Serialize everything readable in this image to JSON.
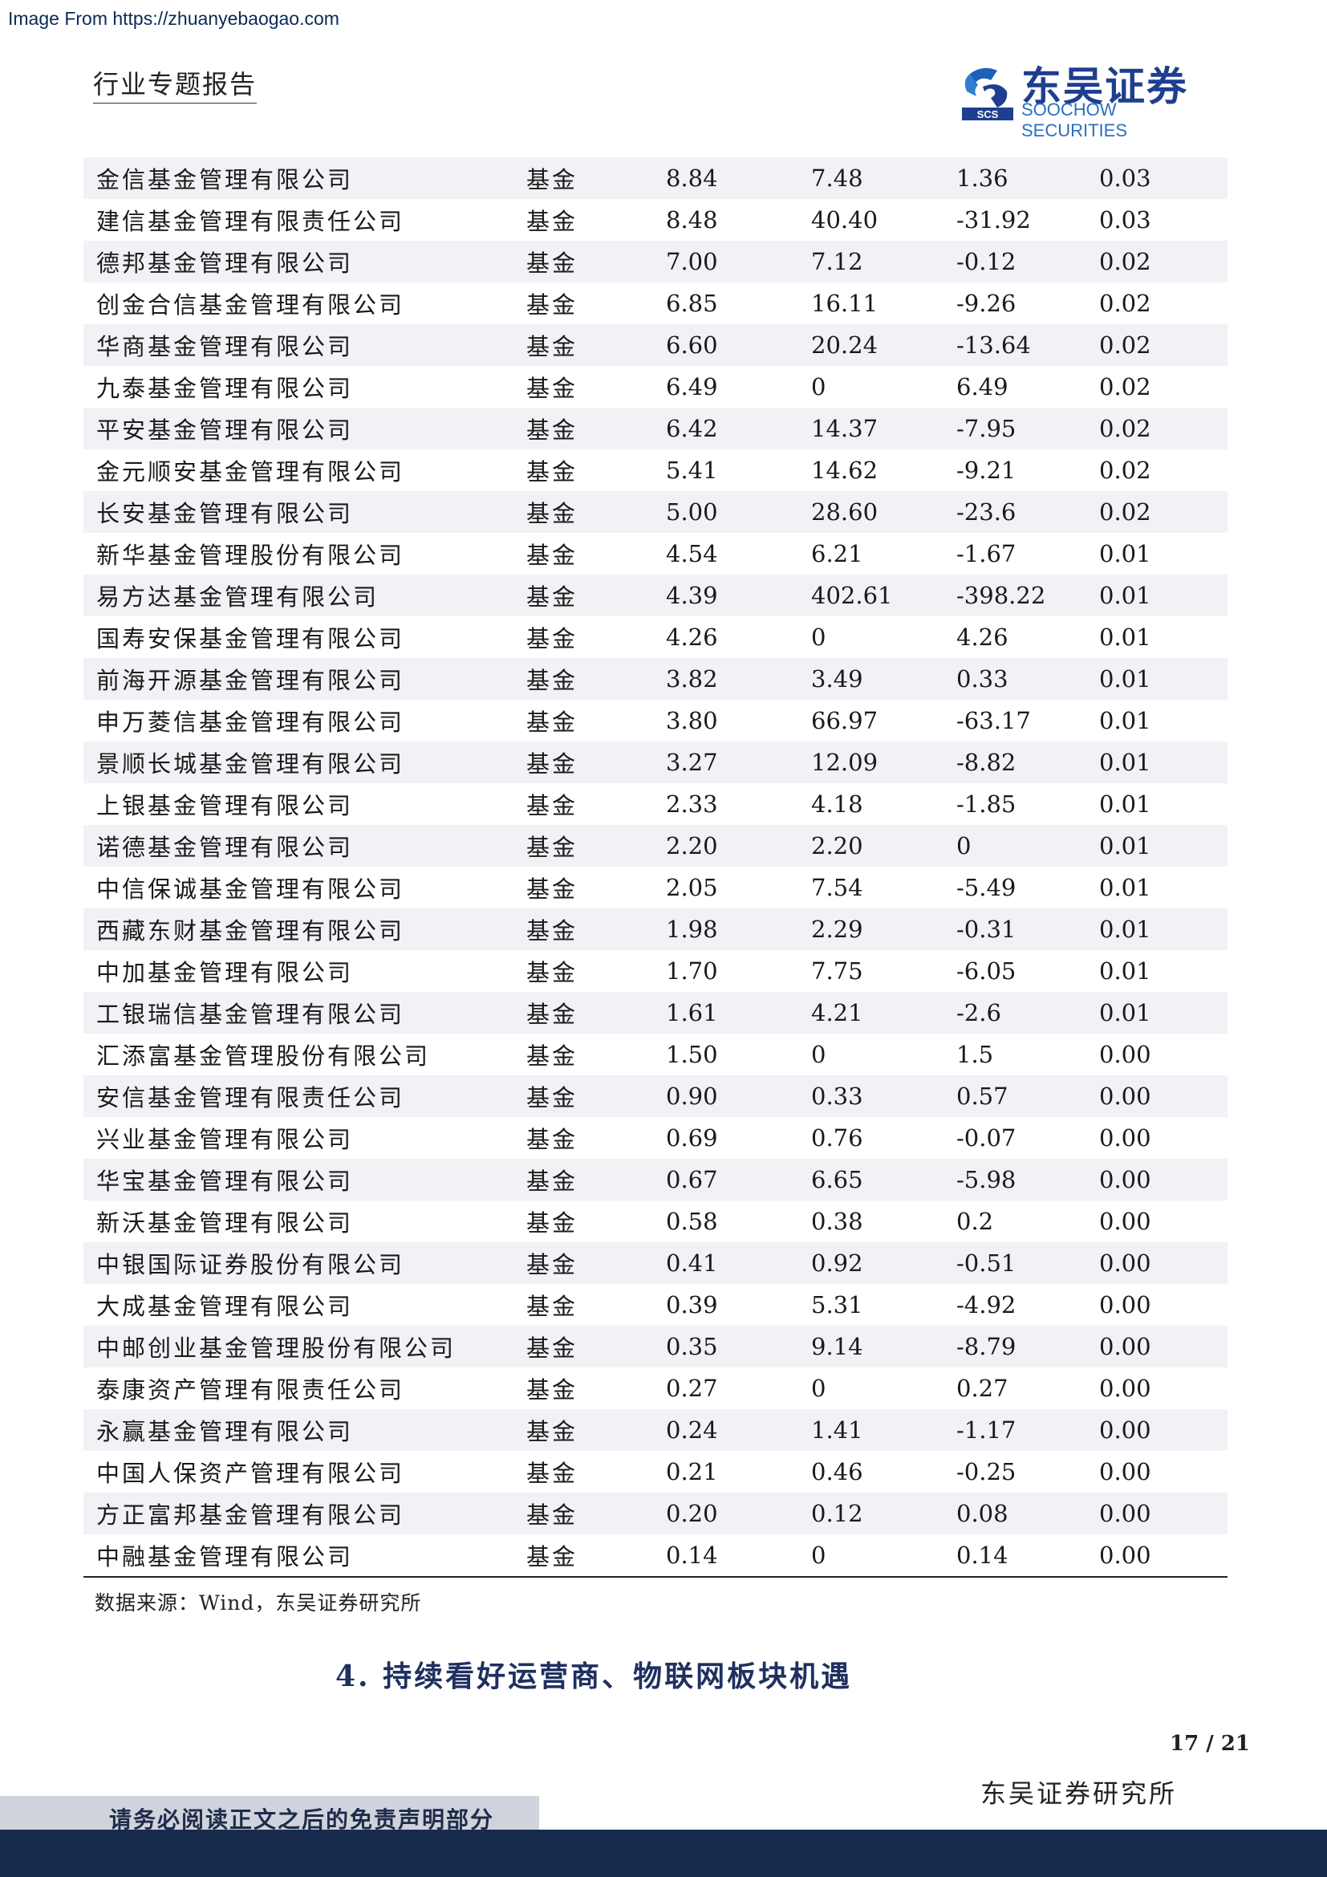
{
  "source_watermark": "Image From https://zhuanyebaogao.com",
  "header": {
    "report_type": "行业专题报告",
    "brand_cn": "东吴证券",
    "brand_en": "SOOCHOW SECURITIES",
    "logo_small": "SCS"
  },
  "table": {
    "rows": [
      [
        "金信基金管理有限公司",
        "基金",
        "8.84",
        "7.48",
        "1.36",
        "0.03"
      ],
      [
        "建信基金管理有限责任公司",
        "基金",
        "8.48",
        "40.40",
        "-31.92",
        "0.03"
      ],
      [
        "德邦基金管理有限公司",
        "基金",
        "7.00",
        "7.12",
        "-0.12",
        "0.02"
      ],
      [
        "创金合信基金管理有限公司",
        "基金",
        "6.85",
        "16.11",
        "-9.26",
        "0.02"
      ],
      [
        "华商基金管理有限公司",
        "基金",
        "6.60",
        "20.24",
        "-13.64",
        "0.02"
      ],
      [
        "九泰基金管理有限公司",
        "基金",
        "6.49",
        "0",
        "6.49",
        "0.02"
      ],
      [
        "平安基金管理有限公司",
        "基金",
        "6.42",
        "14.37",
        "-7.95",
        "0.02"
      ],
      [
        "金元顺安基金管理有限公司",
        "基金",
        "5.41",
        "14.62",
        "-9.21",
        "0.02"
      ],
      [
        "长安基金管理有限公司",
        "基金",
        "5.00",
        "28.60",
        "-23.6",
        "0.02"
      ],
      [
        "新华基金管理股份有限公司",
        "基金",
        "4.54",
        "6.21",
        "-1.67",
        "0.01"
      ],
      [
        "易方达基金管理有限公司",
        "基金",
        "4.39",
        "402.61",
        "-398.22",
        "0.01"
      ],
      [
        "国寿安保基金管理有限公司",
        "基金",
        "4.26",
        "0",
        "4.26",
        "0.01"
      ],
      [
        "前海开源基金管理有限公司",
        "基金",
        "3.82",
        "3.49",
        "0.33",
        "0.01"
      ],
      [
        "申万菱信基金管理有限公司",
        "基金",
        "3.80",
        "66.97",
        "-63.17",
        "0.01"
      ],
      [
        "景顺长城基金管理有限公司",
        "基金",
        "3.27",
        "12.09",
        "-8.82",
        "0.01"
      ],
      [
        "上银基金管理有限公司",
        "基金",
        "2.33",
        "4.18",
        "-1.85",
        "0.01"
      ],
      [
        "诺德基金管理有限公司",
        "基金",
        "2.20",
        "2.20",
        "0",
        "0.01"
      ],
      [
        "中信保诚基金管理有限公司",
        "基金",
        "2.05",
        "7.54",
        "-5.49",
        "0.01"
      ],
      [
        "西藏东财基金管理有限公司",
        "基金",
        "1.98",
        "2.29",
        "-0.31",
        "0.01"
      ],
      [
        "中加基金管理有限公司",
        "基金",
        "1.70",
        "7.75",
        "-6.05",
        "0.01"
      ],
      [
        "工银瑞信基金管理有限公司",
        "基金",
        "1.61",
        "4.21",
        "-2.6",
        "0.01"
      ],
      [
        "汇添富基金管理股份有限公司",
        "基金",
        "1.50",
        "0",
        "1.5",
        "0.00"
      ],
      [
        "安信基金管理有限责任公司",
        "基金",
        "0.90",
        "0.33",
        "0.57",
        "0.00"
      ],
      [
        "兴业基金管理有限公司",
        "基金",
        "0.69",
        "0.76",
        "-0.07",
        "0.00"
      ],
      [
        "华宝基金管理有限公司",
        "基金",
        "0.67",
        "6.65",
        "-5.98",
        "0.00"
      ],
      [
        "新沃基金管理有限公司",
        "基金",
        "0.58",
        "0.38",
        "0.2",
        "0.00"
      ],
      [
        "中银国际证券股份有限公司",
        "基金",
        "0.41",
        "0.92",
        "-0.51",
        "0.00"
      ],
      [
        "大成基金管理有限公司",
        "基金",
        "0.39",
        "5.31",
        "-4.92",
        "0.00"
      ],
      [
        "中邮创业基金管理股份有限公司",
        "基金",
        "0.35",
        "9.14",
        "-8.79",
        "0.00"
      ],
      [
        "泰康资产管理有限责任公司",
        "基金",
        "0.27",
        "0",
        "0.27",
        "0.00"
      ],
      [
        "永赢基金管理有限公司",
        "基金",
        "0.24",
        "1.41",
        "-1.17",
        "0.00"
      ],
      [
        "中国人保资产管理有限公司",
        "基金",
        "0.21",
        "0.46",
        "-0.25",
        "0.00"
      ],
      [
        "方正富邦基金管理有限公司",
        "基金",
        "0.20",
        "0.12",
        "0.08",
        "0.00"
      ],
      [
        "中融基金管理有限公司",
        "基金",
        "0.14",
        "0",
        "0.14",
        "0.00"
      ]
    ]
  },
  "source_note": "数据来源：Wind，东吴证券研究所",
  "section_heading": "4. 持续看好运营商、物联网板块机遇",
  "page_number": "17 / 21",
  "footer": {
    "institute": "东吴证券研究所",
    "disclaimer": "请务必阅读正文之后的免责声明部分"
  },
  "colors": {
    "brand_blue": "#1f3e8f",
    "footer_navy": "#172b4d",
    "row_shade": "#f1f2f5",
    "disclaimer_bg": "#cfd3dc"
  }
}
